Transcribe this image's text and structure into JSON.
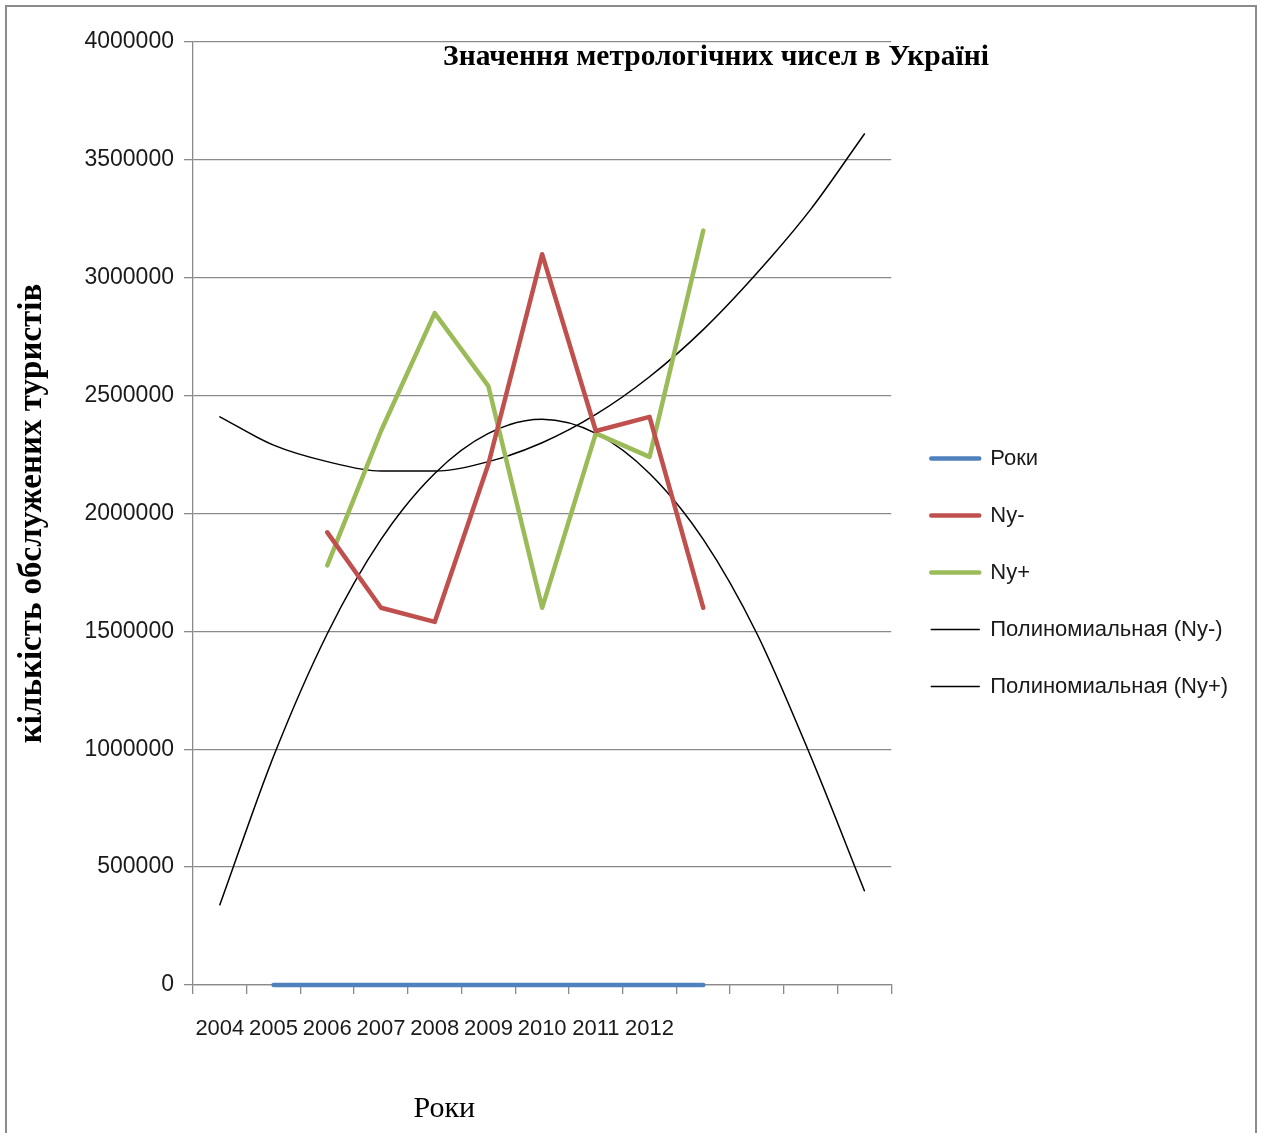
{
  "chart_data": {
    "type": "line",
    "title": "Значення метрологічних чисел в Україні",
    "xlabel": "Роки",
    "ylabel": "кількість обслужених туристів",
    "categories": [
      "2004",
      "2005",
      "2006",
      "2007",
      "2008",
      "2009",
      "2010",
      "2011",
      "2012",
      null,
      null,
      null,
      null
    ],
    "series": [
      {
        "name": "Роки",
        "color": "#4f81bd",
        "values": [
          null,
          0,
          0,
          0,
          0,
          0,
          0,
          0,
          0,
          0,
          null,
          null,
          null
        ]
      },
      {
        "name": "Ny-",
        "color": "#c0504d",
        "values": [
          null,
          null,
          1920000,
          1600000,
          1540000,
          2210000,
          3100000,
          2350000,
          2410000,
          1600000,
          null,
          null,
          null
        ]
      },
      {
        "name": "Ny+",
        "color": "#9bbb59",
        "values": [
          null,
          null,
          1780000,
          2350000,
          2850000,
          2540000,
          1600000,
          2340000,
          2240000,
          3200000,
          null,
          null,
          null
        ]
      },
      {
        "name": "Полиномиальная (Ny-)",
        "type": "line",
        "color": "#000000",
        "values": [
          340000,
          970000,
          1490000,
          1890000,
          2170000,
          2340000,
          2400000,
          2340000,
          2170000,
          1890000,
          1490000,
          970000,
          400000
        ]
      },
      {
        "name": "Полиномиальная (Ny+)",
        "type": "line",
        "color": "#000000",
        "values": [
          2410000,
          2290000,
          2220000,
          2180000,
          2180000,
          2220000,
          2300000,
          2420000,
          2580000,
          2780000,
          3020000,
          3290000,
          3610000
        ]
      }
    ],
    "ylim": [
      0,
      4000000
    ],
    "yticks": [
      0,
      500000,
      1000000,
      1500000,
      2000000,
      2500000,
      3000000,
      3500000,
      4000000
    ],
    "grid": "y",
    "legend": "right",
    "marker": "none",
    "line_style": "solid"
  }
}
